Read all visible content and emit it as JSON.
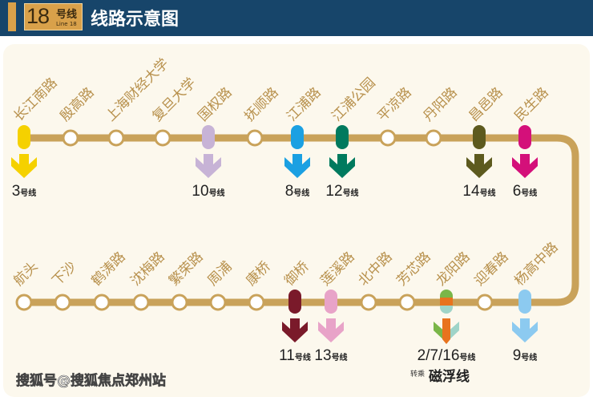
{
  "header": {
    "badge_number": "18",
    "badge_hao": "号线",
    "badge_en": "Line 18",
    "title": "线路示意图"
  },
  "colors": {
    "line": "#c9a25a",
    "label": "#b8914d",
    "header_bg": "#17456a",
    "badge": "#d9a14a"
  },
  "line_suffix": "号线",
  "top_stations": [
    {
      "name": "长江南路",
      "transfer": "3",
      "colors": [
        "#f5d100"
      ]
    },
    {
      "name": "殷高路"
    },
    {
      "name": "上海财经大学"
    },
    {
      "name": "复旦大学"
    },
    {
      "name": "国权路",
      "transfer": "10",
      "colors": [
        "#c7b3d6"
      ]
    },
    {
      "name": "抚顺路"
    },
    {
      "name": "江浦路",
      "transfer": "8",
      "colors": [
        "#1ba0e2"
      ]
    },
    {
      "name": "江浦公园",
      "transfer": "12",
      "colors": [
        "#007a5e"
      ]
    },
    {
      "name": "平凉路"
    },
    {
      "name": "丹阳路"
    },
    {
      "name": "昌邑路",
      "transfer": "14",
      "colors": [
        "#5d5a1e"
      ]
    },
    {
      "name": "民生路",
      "transfer": "6",
      "colors": [
        "#d4107a"
      ]
    }
  ],
  "bottom_stations": [
    {
      "name": "航头"
    },
    {
      "name": "下沙"
    },
    {
      "name": "鹤涛路"
    },
    {
      "name": "沈梅路"
    },
    {
      "name": "繁荣路"
    },
    {
      "name": "周浦"
    },
    {
      "name": "康桥"
    },
    {
      "name": "御桥",
      "transfer": "11",
      "colors": [
        "#7a1a2a"
      ]
    },
    {
      "name": "莲溪路",
      "transfer": "13",
      "colors": [
        "#e8a3c8"
      ]
    },
    {
      "name": "北中路"
    },
    {
      "name": "芳芯路"
    },
    {
      "name": "龙阳路",
      "transfer": "2/7/16",
      "colors": [
        "#7ab648",
        "#e8731e",
        "#9fd4c8"
      ],
      "note_small": "转乘",
      "note": "磁浮线"
    },
    {
      "name": "迎春路"
    },
    {
      "name": "杨高中路",
      "transfer": "9",
      "colors": [
        "#8ccaf0"
      ]
    }
  ],
  "watermark": "搜狐号@搜狐焦点郑州站"
}
